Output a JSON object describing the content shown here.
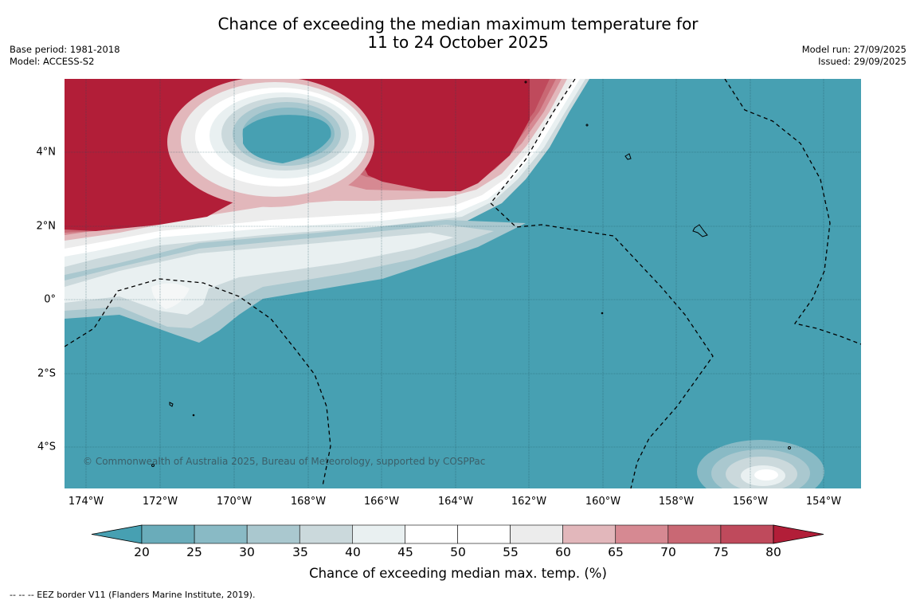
{
  "title_line1": "Chance of exceeding the median maximum temperature for",
  "title_line2": "11 to 24 October 2025",
  "base_period": "Base period: 1981-2018",
  "model": "Model: ACCESS-S2",
  "model_run": "Model run: 27/09/2025",
  "issued": "Issued: 29/09/2025",
  "copyright": "© Commonwealth of Australia 2025, Bureau of Meteorology, supported by COSPPac",
  "lon_labels": [
    "174°W",
    "172°W",
    "170°W",
    "168°W",
    "166°W",
    "164°W",
    "162°W",
    "160°W",
    "158°W",
    "156°W",
    "154°W"
  ],
  "lat_labels": [
    "4°N",
    "2°N",
    "0°",
    "2°S",
    "4°S"
  ],
  "colorbar": {
    "label": "Chance of exceeding median max. temp. (%)",
    "ticks": [
      "20",
      "25",
      "30",
      "35",
      "40",
      "45",
      "50",
      "55",
      "60",
      "65",
      "70",
      "75",
      "80"
    ],
    "colors": [
      "#47a0b2",
      "#6aacba",
      "#89bac5",
      "#aac8cf",
      "#cbd9dc",
      "#e9f0f1",
      "#ffffff",
      "#ffffff",
      "#ececec",
      "#e2b7bb",
      "#d68992",
      "#c96874",
      "#bf4a5c",
      "#b21e38"
    ]
  },
  "footnote": "--  --  -- EEZ border V11 (Flanders Marine Institute, 2019)."
}
